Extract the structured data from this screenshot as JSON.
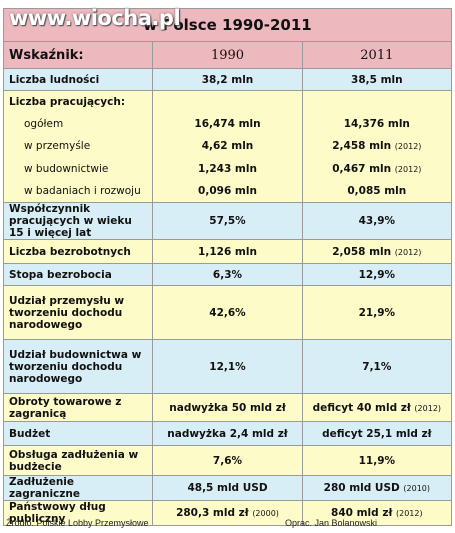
{
  "watermark": "www.wiocha.pl",
  "title": "w Polsce 1990-2011",
  "header": [
    "Wskaźnik:",
    "1990",
    "2011"
  ],
  "rows": [
    {
      "label": "Liczba ludności",
      "a": "38,2 mln",
      "b": "38,5 mln"
    },
    {
      "label": "Liczba pracujących:",
      "items": [
        {
          "label": "ogółem",
          "a": "16,474 mln",
          "b": "14,376 mln"
        },
        {
          "label": "w przemyśle",
          "a": "4,62 mln",
          "b": "2,458 mln",
          "b_note": "(2012)"
        },
        {
          "label": "w budownictwie",
          "a": "1,243 mln",
          "b": "0,467 mln",
          "b_note": "(2012)"
        },
        {
          "label": "w badaniach i rozwoju",
          "a": "0,096 mln",
          "b": "0,085 mln"
        }
      ]
    },
    {
      "label": "Współczynnik pracujących w wieku 15 i więcej lat",
      "a": "57,5%",
      "b": "43,9%"
    },
    {
      "label": "Liczba bezrobotnych",
      "a": "1,126 mln",
      "b": "2,058 mln",
      "b_note": "(2012)"
    },
    {
      "label": "Stopa bezrobocia",
      "a": "6,3%",
      "b": "12,9%"
    },
    {
      "label": "Udział przemysłu w tworzeniu dochodu narodowego",
      "a": "42,6%",
      "b": "21,9%"
    },
    {
      "label": "Udział budownictwa w tworzeniu dochodu narodowego",
      "a": "12,1%",
      "b": "7,1%"
    },
    {
      "label": "Obroty towarowe z zagranicą",
      "a": "nadwyżka 50 mld zł",
      "b": "deficyt 40 mld zł",
      "b_note": "(2012)"
    },
    {
      "label": "Budżet",
      "a": "nadwyżka 2,4 mld zł",
      "b": "deficyt 25,1 mld zł"
    },
    {
      "label": "Obsługa zadłużenia w budżecie",
      "a": "7,6%",
      "b": "11,9%"
    },
    {
      "label": "Zadłużenie zagraniczne",
      "a": "48,5 mld USD",
      "b": "280 mld USD",
      "b_note": "(2010)"
    },
    {
      "label": "Państwowy dług publiczny",
      "a": "280,3 mld zł",
      "a_note": "(2000)",
      "b": "840 mld zł",
      "b_note": "(2012)"
    }
  ],
  "footer": {
    "source": "Źródło: Polskie Lobby Przemysłowe",
    "author": "Oprac. Jan Bolanowski"
  }
}
